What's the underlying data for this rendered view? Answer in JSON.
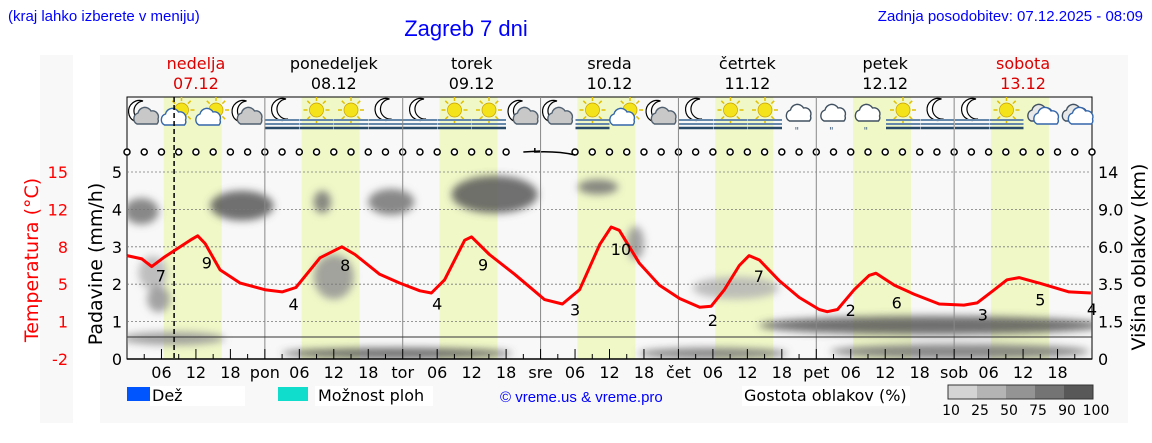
{
  "header": {
    "location_hint": "(kraj lahko izberete v meniju)",
    "title": "Zagreb 7 dni",
    "updated": "Zadnja posodobitev: 07.12.2025 - 08:09"
  },
  "colors": {
    "temperature": "#ff0000",
    "rain": "#0055ff",
    "showers": "#11ddcc",
    "link": "#0000ff",
    "daylight": "#f0f8c8",
    "weekend": "#dd0000"
  },
  "days": [
    {
      "name": "nedelja",
      "date": "07.12",
      "abbr": "",
      "weekend": true
    },
    {
      "name": "ponedeljek",
      "date": "08.12",
      "abbr": "pon",
      "weekend": false
    },
    {
      "name": "torek",
      "date": "09.12",
      "abbr": "tor",
      "weekend": false
    },
    {
      "name": "sreda",
      "date": "10.12",
      "abbr": "sre",
      "weekend": false
    },
    {
      "name": "četrtek",
      "date": "11.12",
      "abbr": "čet",
      "weekend": false
    },
    {
      "name": "petek",
      "date": "12.12",
      "abbr": "pet",
      "weekend": false
    },
    {
      "name": "sobota",
      "date": "13.12",
      "abbr": "sob",
      "weekend": true
    }
  ],
  "weather_icons": [
    "moon-cloud",
    "sun-cloud",
    "sun-cloud",
    "moon-cloud",
    "moon-fog",
    "sun-fog",
    "sun-fog",
    "moon-fog",
    "moon-fog",
    "sun-fog",
    "sun-fog",
    "moon-cloud",
    "moon-cloud",
    "sun-fog",
    "sun-cloud",
    "moon-cloud",
    "moon-fog",
    "sun-fog",
    "sun-fog",
    "cloud-drizzle",
    "cloud-drizzle",
    "cloud-drizzle",
    "sun-fog",
    "moon-fog",
    "moon-fog",
    "sun-fog",
    "cloud",
    "cloud"
  ],
  "chart_data": {
    "type": "line",
    "title": "Zagreb 7 dni",
    "x_unit": "hours since 07.12 00:00",
    "xlim": [
      0,
      168
    ],
    "hour_tick_labels": [
      "06",
      "12",
      "18"
    ],
    "left_axis_temperature": {
      "label": "Temperatura (°C)",
      "ticks": [
        "15",
        "12",
        "8",
        "5",
        "1",
        "-2"
      ],
      "range": [
        -2,
        15
      ]
    },
    "left_axis_precip": {
      "label": "Padavine (mm/h)",
      "ticks": [
        "5",
        "4",
        "3",
        "2",
        "1",
        "0"
      ],
      "range": [
        0,
        5
      ]
    },
    "right_axis_cloud_height": {
      "label": "Višina oblakov (km)",
      "ticks": [
        "14",
        "9.0",
        "6.0",
        "3.5",
        "1.5",
        "0"
      ]
    },
    "current_time_hour": 8.2,
    "daylight_hours": [
      6.4,
      16.5
    ],
    "temperature_series": {
      "name": "Temperatura",
      "hours": [
        0,
        2.6,
        4.3,
        6.6,
        11,
        12.3,
        13.6,
        16.2,
        19.7,
        24,
        27,
        29.4,
        33.6,
        37.4,
        39.7,
        44,
        47.5,
        51,
        53,
        55.3,
        58.8,
        60,
        63.1,
        67.5,
        72.7,
        75.8,
        78.8,
        82.3,
        84.3,
        85.7,
        89.2,
        92.7,
        96.2,
        99.7,
        101.7,
        104,
        106.6,
        108.3,
        110.1,
        113.6,
        117,
        120.5,
        121.9,
        123.7,
        126.6,
        129.2,
        130.4,
        133.6,
        137,
        141.4,
        145.7,
        148,
        151,
        153.2,
        155.3,
        158.8,
        164,
        167.8
      ],
      "values": [
        7.4,
        7.1,
        6.4,
        7.3,
        8.8,
        9.2,
        8.5,
        6.1,
        4.9,
        4.3,
        4.1,
        4.5,
        7.2,
        8.2,
        7.5,
        5.7,
        4.9,
        4.2,
        4.0,
        5.2,
        8.8,
        9.1,
        7.5,
        5.7,
        3.4,
        3.0,
        4.3,
        8.4,
        10.0,
        9.7,
        6.7,
        4.7,
        3.5,
        2.7,
        2.8,
        4.3,
        6.5,
        7.4,
        7.0,
        5.1,
        3.6,
        2.5,
        2.3,
        2.5,
        4.3,
        5.6,
        5.8,
        4.7,
        3.9,
        3.0,
        2.9,
        3.1,
        4.3,
        5.2,
        5.4,
        4.9,
        4.1,
        4.0
      ]
    },
    "temperature_labels": [
      {
        "hour": 5.9,
        "value": "7"
      },
      {
        "hour": 13.9,
        "value": "9"
      },
      {
        "hour": 29,
        "value": "4"
      },
      {
        "hour": 38,
        "value": "8"
      },
      {
        "hour": 54,
        "value": "4"
      },
      {
        "hour": 62,
        "value": "9"
      },
      {
        "hour": 78,
        "value": "3"
      },
      {
        "hour": 86,
        "value": "10"
      },
      {
        "hour": 102,
        "value": "2"
      },
      {
        "hour": 110,
        "value": "7"
      },
      {
        "hour": 126,
        "value": "2"
      },
      {
        "hour": 134,
        "value": "6"
      },
      {
        "hour": 149,
        "value": "3"
      },
      {
        "hour": 159,
        "value": "5"
      },
      {
        "hour": 168,
        "value": "4"
      }
    ],
    "cloud_cells": [
      {
        "hour": 2.5,
        "level": 3.95,
        "dur": 6,
        "depth": 0.7,
        "density": 75
      },
      {
        "hour": 4.5,
        "level": 2.3,
        "dur": 5,
        "depth": 0.9,
        "density": 25
      },
      {
        "hour": 5.5,
        "level": 1.6,
        "dur": 4,
        "depth": 0.7,
        "density": 50
      },
      {
        "hour": 20,
        "level": 4.1,
        "dur": 11,
        "depth": 0.8,
        "density": 90
      },
      {
        "hour": 34,
        "level": 4.2,
        "dur": 3,
        "depth": 0.6,
        "density": 75
      },
      {
        "hour": 36,
        "level": 2.2,
        "dur": 7,
        "depth": 1.2,
        "density": 50
      },
      {
        "hour": 46,
        "level": 4.2,
        "dur": 8,
        "depth": 0.7,
        "density": 75
      },
      {
        "hour": 64,
        "level": 4.4,
        "dur": 15,
        "depth": 1.0,
        "density": 90
      },
      {
        "hour": 82,
        "level": 4.6,
        "dur": 7,
        "depth": 0.4,
        "density": 75
      },
      {
        "hour": 88.5,
        "level": 3.1,
        "dur": 3,
        "depth": 0.9,
        "density": 50
      },
      {
        "hour": 106,
        "level": 1.9,
        "dur": 15,
        "depth": 0.6,
        "density": 25
      },
      {
        "hour": 8,
        "level": 0.55,
        "dur": 18,
        "depth": 0.35,
        "density": 50
      },
      {
        "hour": 47,
        "level": 0.15,
        "dur": 40,
        "depth": 0.3,
        "density": 90
      },
      {
        "hour": 102,
        "level": 0.15,
        "dur": 26,
        "depth": 0.3,
        "density": 75
      },
      {
        "hour": 140,
        "level": 0.9,
        "dur": 60,
        "depth": 0.5,
        "density": 90
      },
      {
        "hour": 145,
        "level": 0.2,
        "dur": 45,
        "depth": 0.4,
        "density": 75
      }
    ]
  },
  "legend": {
    "rain": "Dež",
    "showers": "Možnost ploh",
    "copyright": "© vreme.us & vreme.pro",
    "cloud_density_title": "Gostota oblakov (%)",
    "cloud_density_levels": [
      "10",
      "25",
      "50",
      "75",
      "90",
      "100"
    ],
    "cloud_density_colors": [
      "#d4d4d4",
      "#b4b4b4",
      "#949494",
      "#747474",
      "#585858"
    ]
  }
}
